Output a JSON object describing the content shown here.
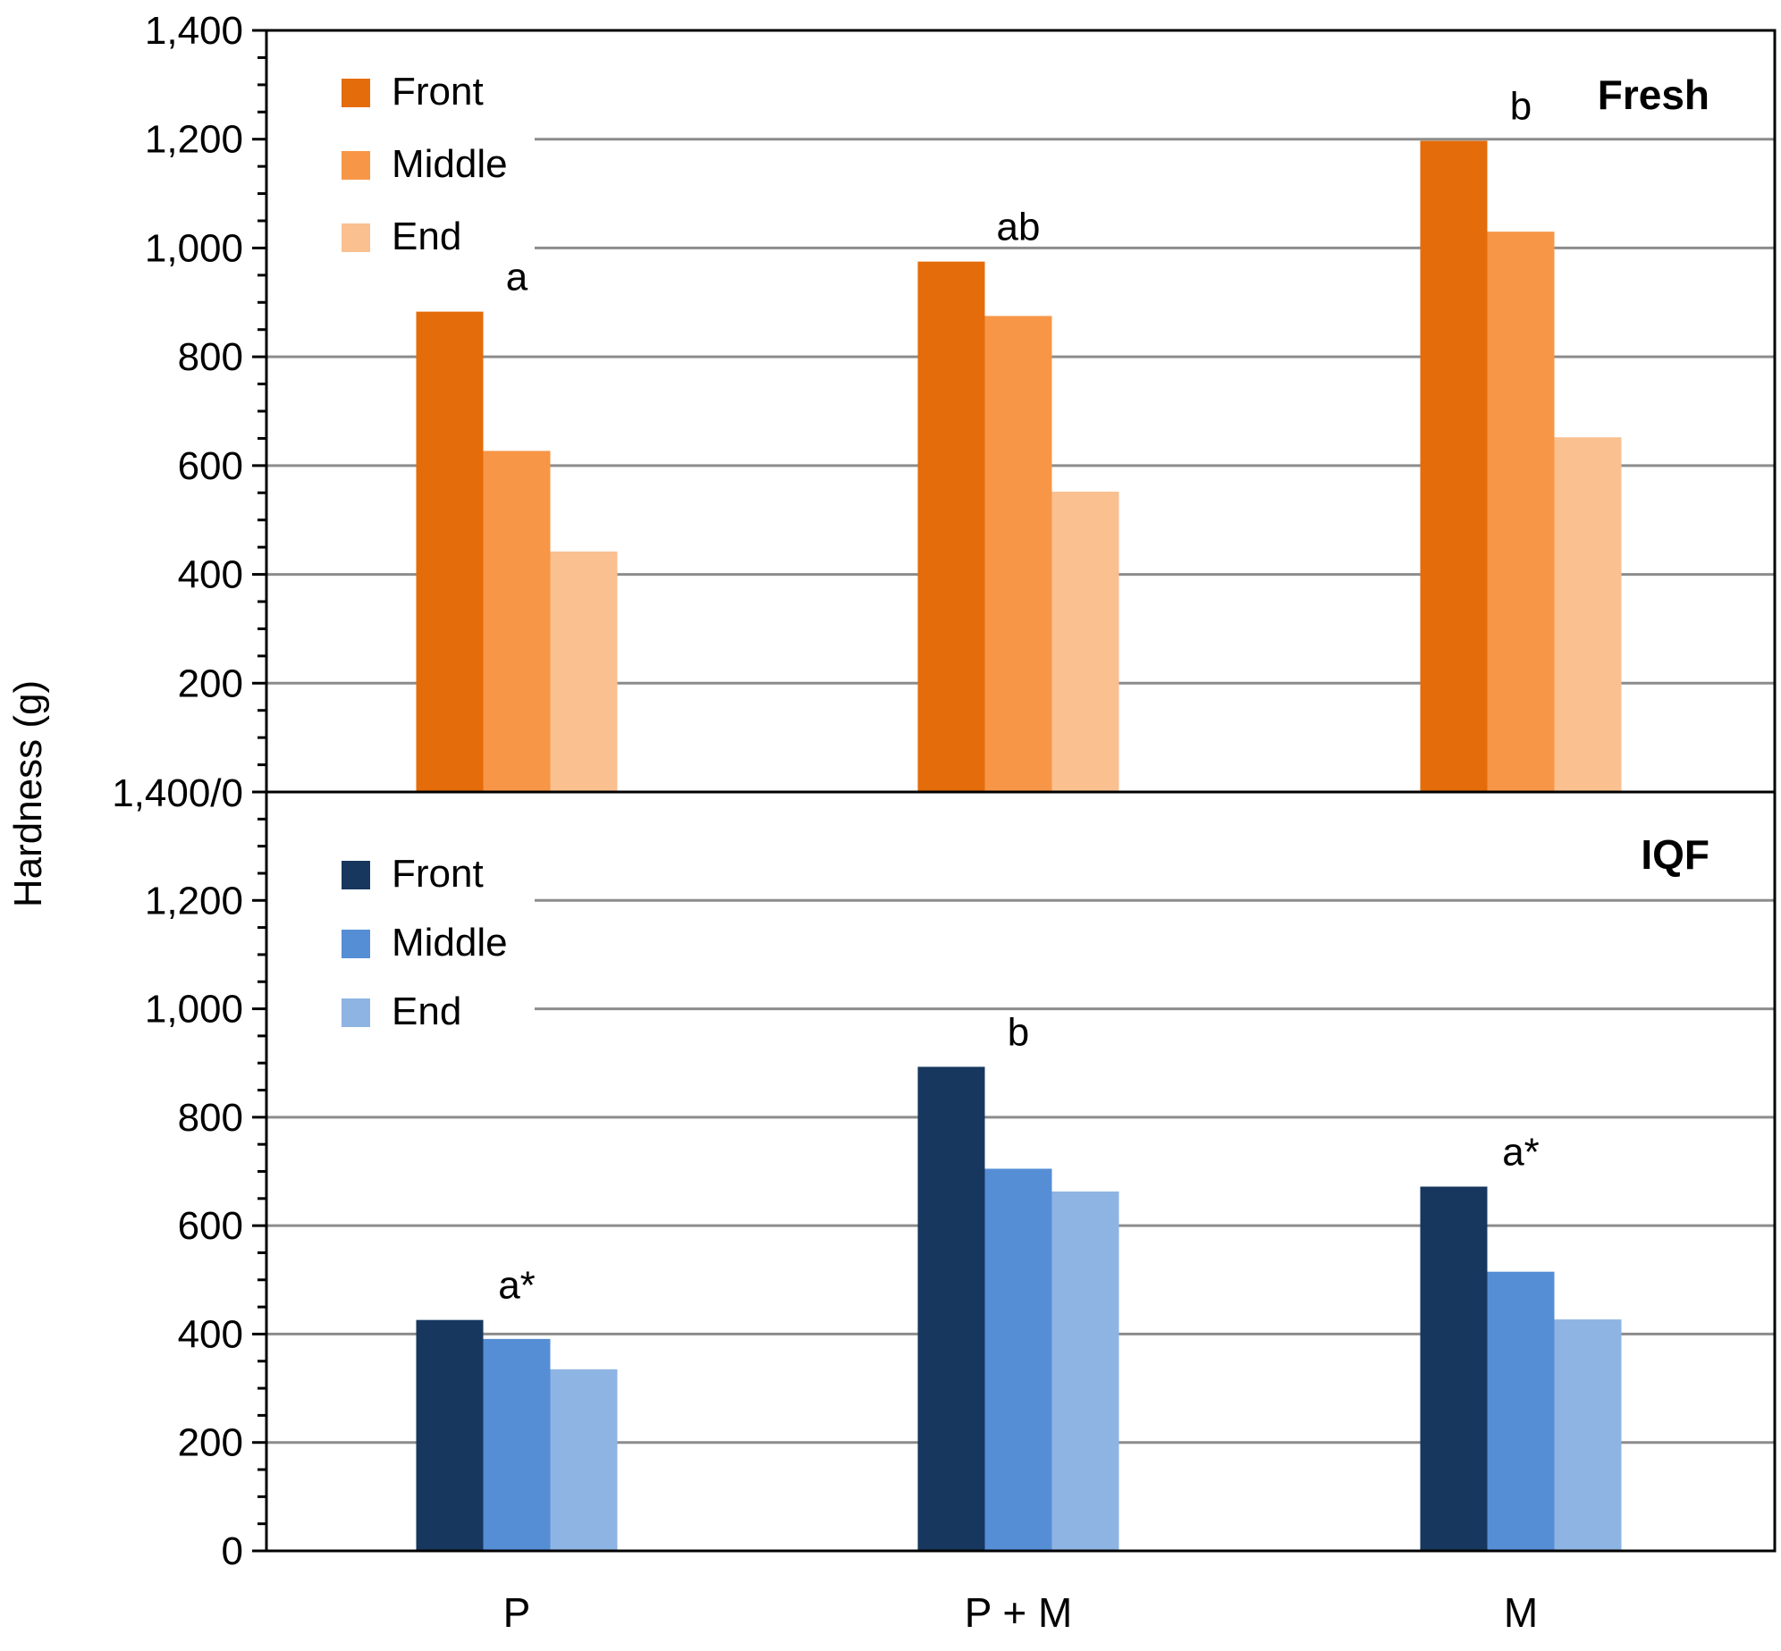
{
  "chart_data": {
    "type": "bar",
    "ylabel": "Hardness (g)",
    "categories": [
      "P",
      "P + M",
      "M"
    ],
    "grid": true,
    "shared_tick_label": "1,400/0",
    "panels": [
      {
        "title": "Fresh",
        "ylim": [
          0,
          1400
        ],
        "yticks": [
          "200",
          "400",
          "600",
          "800",
          "1,000",
          "1,200",
          "1,400"
        ],
        "series": [
          {
            "name": "Front",
            "color": "#E46C0A",
            "values": [
              883,
              975,
              1197
            ]
          },
          {
            "name": "Middle",
            "color": "#F79646",
            "values": [
              627,
              875,
              1030
            ]
          },
          {
            "name": "End",
            "color": "#FAC090",
            "values": [
              442,
              552,
              652
            ]
          }
        ],
        "letters": [
          "a",
          "ab",
          "b"
        ],
        "legend_position": "top-left"
      },
      {
        "title": "IQF",
        "ylim": [
          0,
          1400
        ],
        "yticks": [
          "0",
          "200",
          "400",
          "600",
          "800",
          "1,000",
          "1,200"
        ],
        "series": [
          {
            "name": "Front",
            "color": "#17375E",
            "values": [
              426,
              893,
              672
            ]
          },
          {
            "name": "Middle",
            "color": "#558ED5",
            "values": [
              391,
              705,
              515
            ]
          },
          {
            "name": "End",
            "color": "#8EB4E3",
            "values": [
              335,
              663,
              427
            ]
          }
        ],
        "letters": [
          "a*",
          "b",
          "a*"
        ],
        "legend_position": "top-left"
      }
    ]
  }
}
